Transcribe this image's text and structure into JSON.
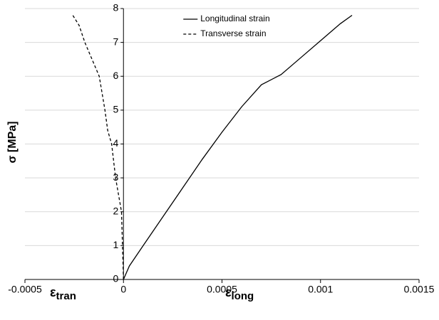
{
  "chart_data": {
    "type": "line",
    "y_label": "σ [MPa]",
    "x_labels": [
      {
        "symbol": "ε",
        "subscript": "tran"
      },
      {
        "symbol": "ε",
        "subscript": "long"
      }
    ],
    "series": [
      {
        "name": "Longitudinal strain",
        "color": "#000000",
        "line_style": "solid",
        "x": [
          0,
          3e-05,
          0.0001,
          0.0002,
          0.0003,
          0.0004,
          0.0005,
          0.0006,
          0.0007,
          0.0008,
          0.0009,
          0.001,
          0.0011,
          0.00116
        ],
        "values": [
          0,
          0.4,
          1.0,
          1.85,
          2.7,
          3.55,
          4.35,
          5.1,
          5.75,
          6.05,
          6.55,
          7.05,
          7.55,
          7.8
        ]
      },
      {
        "name": "Transverse strain",
        "color": "#000000",
        "line_style": "dashed",
        "x": [
          0,
          -5e-06,
          -1e-05,
          -4e-05,
          -6e-05,
          -8e-05,
          -9.4e-05,
          -0.000123,
          -0.000196,
          -0.000225,
          -0.000257
        ],
        "values": [
          0,
          1,
          2,
          3,
          4,
          4.4,
          5,
          6,
          7,
          7.5,
          7.8
        ]
      }
    ],
    "xlim": [
      -0.0005,
      0.0015
    ],
    "xticks": [
      -0.0005,
      0,
      0.0005,
      0.001,
      0.0015
    ],
    "ylim": [
      0,
      8
    ],
    "yticks": [
      0,
      1,
      2,
      3,
      4,
      5,
      6,
      7,
      8
    ],
    "grid": true,
    "legend": "top-left"
  }
}
